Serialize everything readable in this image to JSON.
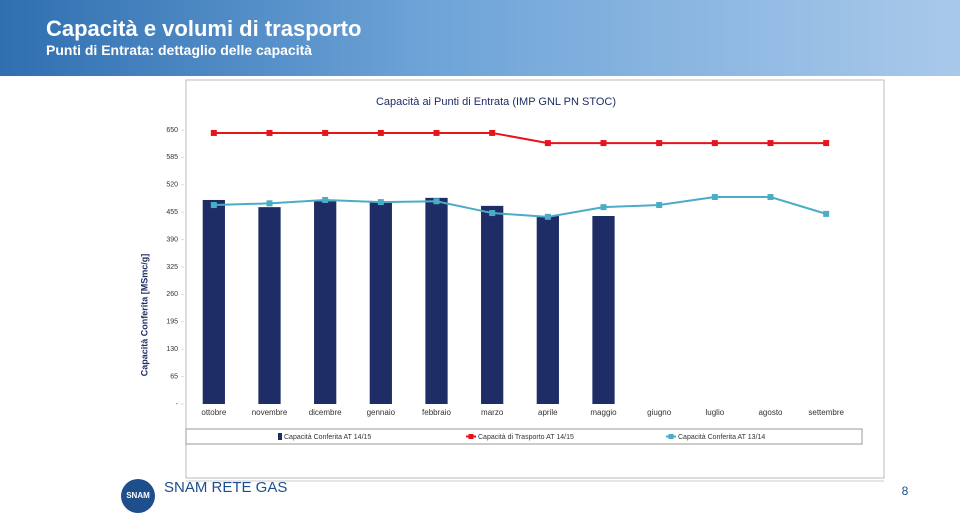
{
  "header": {
    "title": "Capacità e volumi di trasporto",
    "subtitle": "Punti di Entrata: dettaglio delle capacità"
  },
  "chart_data": {
    "type": "bar-line",
    "title": "Capacità ai Punti di Entrata (IMP  GNL  PN  STOC)",
    "y_label": "Capacità Conferita [MSmc/g]",
    "categories": [
      "ottobre",
      "novembre",
      "dicembre",
      "gennaio",
      "febbraio",
      "marzo",
      "aprile",
      "maggio",
      "giugno",
      "luglio",
      "agosto",
      "settembre"
    ],
    "series": [
      {
        "name": "Capacità Conferita AT 14/15",
        "type": "bar",
        "color": "#1f2d66",
        "values": [
          484,
          467,
          481,
          479,
          489,
          470,
          446,
          446,
          null,
          null,
          null,
          null
        ]
      },
      {
        "name": "Capacità di Trasporto AT 14/15",
        "type": "line",
        "color": "#e8141c",
        "values": [
          643,
          643,
          643,
          643,
          643,
          643,
          619,
          619,
          619,
          619,
          619,
          619
        ]
      },
      {
        "name": "Capacità Conferita AT 13/14",
        "type": "line",
        "color": "#4bacc6",
        "values": [
          472,
          476,
          484,
          479,
          481,
          453,
          444,
          467,
          472,
          491,
          491,
          451
        ]
      }
    ],
    "ylim": [
      0,
      650
    ],
    "yticks": [
      {
        "value": 0,
        "label": "-"
      },
      65,
      130,
      195,
      260,
      325,
      390,
      455,
      520,
      585,
      650
    ],
    "grid": false,
    "legend": "bottom"
  },
  "footer": {
    "logo_text": "SNAM",
    "brand": "SNAM RETE GAS",
    "page_number": "8"
  }
}
